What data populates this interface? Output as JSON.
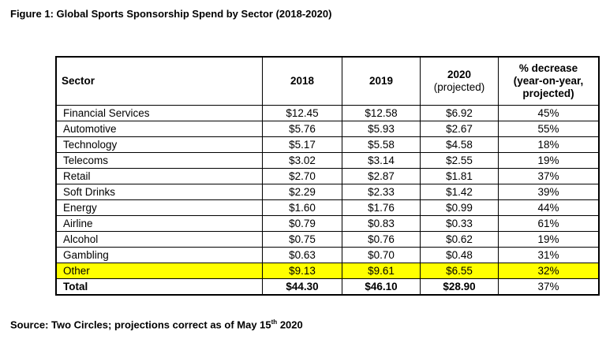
{
  "title": "Figure 1: Global Sports Sponsorship Spend by Sector (2018-2020)",
  "headers": {
    "sector": "Sector",
    "y2018": "2018",
    "y2019": "2019",
    "y2020a": "2020",
    "y2020b": "(projected)",
    "pct_a": "% decrease",
    "pct_b": "(year-on-year,",
    "pct_c": "projected)"
  },
  "rows": [
    [
      "Financial Services",
      "$12.45",
      "$12.58",
      "$6.92",
      "45%"
    ],
    [
      "Automotive",
      "$5.76",
      "$5.93",
      "$2.67",
      "55%"
    ],
    [
      "Technology",
      "$5.17",
      "$5.58",
      "$4.58",
      "18%"
    ],
    [
      "Telecoms",
      "$3.02",
      "$3.14",
      "$2.55",
      "19%"
    ],
    [
      "Retail",
      "$2.70",
      "$2.87",
      "$1.81",
      "37%"
    ],
    [
      "Soft Drinks",
      "$2.29",
      "$2.33",
      "$1.42",
      "39%"
    ],
    [
      "Energy",
      "$1.60",
      "$1.76",
      "$0.99",
      "44%"
    ],
    [
      "Airline",
      "$0.79",
      "$0.83",
      "$0.33",
      "61%"
    ],
    [
      "Alcohol",
      "$0.75",
      "$0.76",
      "$0.62",
      "19%"
    ],
    [
      "Gambling",
      "$0.63",
      "$0.70",
      "$0.48",
      "31%"
    ],
    [
      "Other",
      "$9.13",
      "$9.61",
      "$6.55",
      "32%"
    ]
  ],
  "total": [
    "Total",
    "$44.30",
    "$46.10",
    "$28.90",
    "37%"
  ],
  "highlight_color": "#ffff00",
  "source": {
    "text": "Source: Two Circles; projections correct as of May 15",
    "sup": "th",
    "year": " 2020"
  }
}
